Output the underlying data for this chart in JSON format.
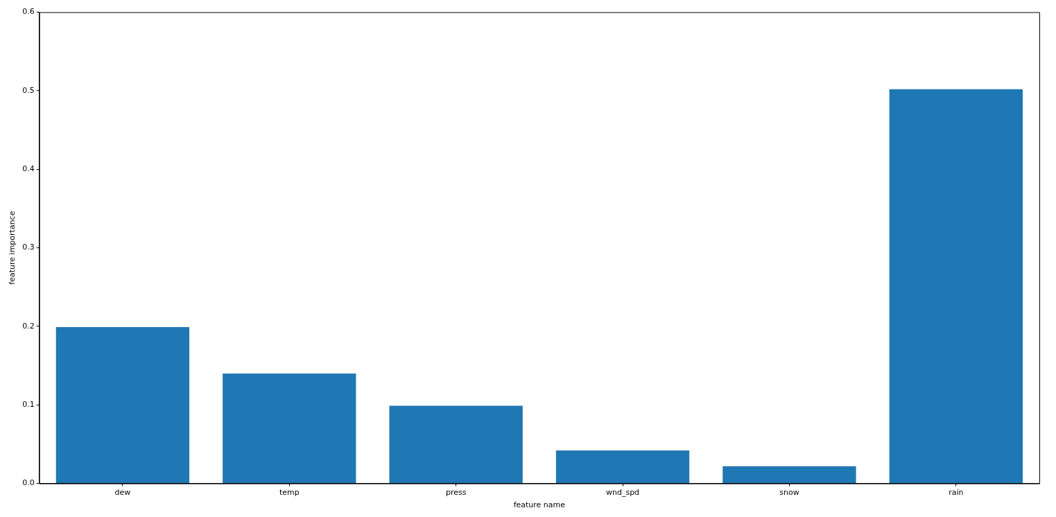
{
  "chart_data": {
    "type": "bar",
    "xlabel": "feature name",
    "ylabel": "feature importance",
    "categories": [
      "dew",
      "temp",
      "press",
      "wnd_spd",
      "snow",
      "rain"
    ],
    "values": [
      0.199,
      0.14,
      0.099,
      0.042,
      0.022,
      0.502
    ],
    "color": "#1f77b4",
    "ylim": [
      0,
      0.6
    ],
    "yticks": [
      {
        "value": 0,
        "label": "0.0"
      },
      0.1,
      0.2,
      0.3,
      0.4,
      0.5,
      0.6
    ],
    "grid": false,
    "legend": false
  }
}
